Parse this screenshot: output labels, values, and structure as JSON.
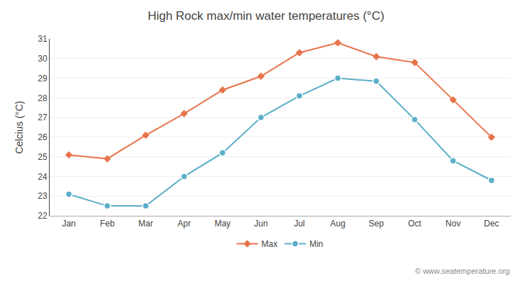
{
  "chart_data": {
    "type": "line",
    "title": "High Rock max/min water temperatures (°C)",
    "ylabel": "Celcius (°C)",
    "categories": [
      "Jan",
      "Feb",
      "Mar",
      "Apr",
      "May",
      "Jun",
      "Jul",
      "Aug",
      "Sep",
      "Oct",
      "Nov",
      "Dec"
    ],
    "series": [
      {
        "name": "Max",
        "color": "#e8734a",
        "marker": "diamond",
        "line_style": "solid",
        "values": [
          25.1,
          24.9,
          26.1,
          27.2,
          28.4,
          29.1,
          30.3,
          30.8,
          30.1,
          29.8,
          27.9,
          26.0
        ]
      },
      {
        "name": "Min",
        "color": "#5aaec8",
        "marker": "circle",
        "line_style": "solid",
        "values": [
          23.1,
          22.5,
          22.5,
          24.0,
          25.2,
          27.0,
          28.1,
          29.0,
          28.85,
          26.9,
          24.8,
          23.8
        ]
      }
    ],
    "ylim": [
      22,
      31
    ],
    "yticks": [
      22,
      23,
      24,
      25,
      26,
      27,
      28,
      29,
      30,
      31
    ],
    "grid": true,
    "legend": "bottom",
    "annotations": [
      "© www.seatemperature.org"
    ]
  }
}
